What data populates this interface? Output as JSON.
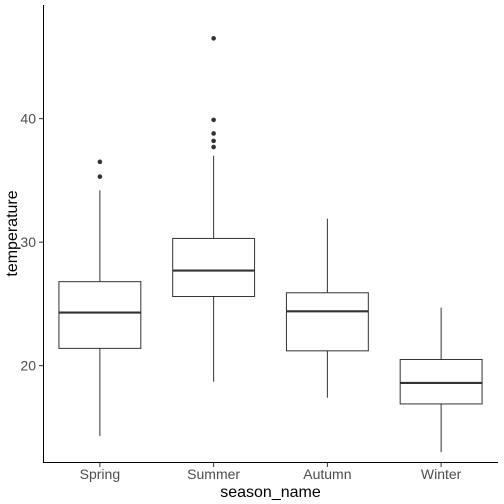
{
  "chart_data": {
    "type": "boxplot",
    "xlabel": "season_name",
    "ylabel": "temperature",
    "categories": [
      "Spring",
      "Summer",
      "Autumn",
      "Winter"
    ],
    "ylim": [
      12.2,
      49.2
    ],
    "yticks": [
      20,
      30,
      40
    ],
    "grid": false,
    "boxes": [
      {
        "category": "Spring",
        "whisker_low": 14.3,
        "q1": 21.4,
        "median": 24.3,
        "q3": 26.8,
        "whisker_high": 34.2,
        "outliers": [
          35.3,
          36.5
        ]
      },
      {
        "category": "Summer",
        "whisker_low": 18.7,
        "q1": 25.6,
        "median": 27.7,
        "q3": 30.3,
        "whisker_high": 37.0,
        "outliers": [
          37.7,
          38.2,
          38.8,
          39.9,
          46.5
        ]
      },
      {
        "category": "Autumn",
        "whisker_low": 17.4,
        "q1": 21.2,
        "median": 24.4,
        "q3": 25.9,
        "whisker_high": 31.9,
        "outliers": []
      },
      {
        "category": "Winter",
        "whisker_low": 13.0,
        "q1": 16.9,
        "median": 18.6,
        "q3": 20.5,
        "whisker_high": 24.7,
        "outliers": []
      }
    ]
  }
}
